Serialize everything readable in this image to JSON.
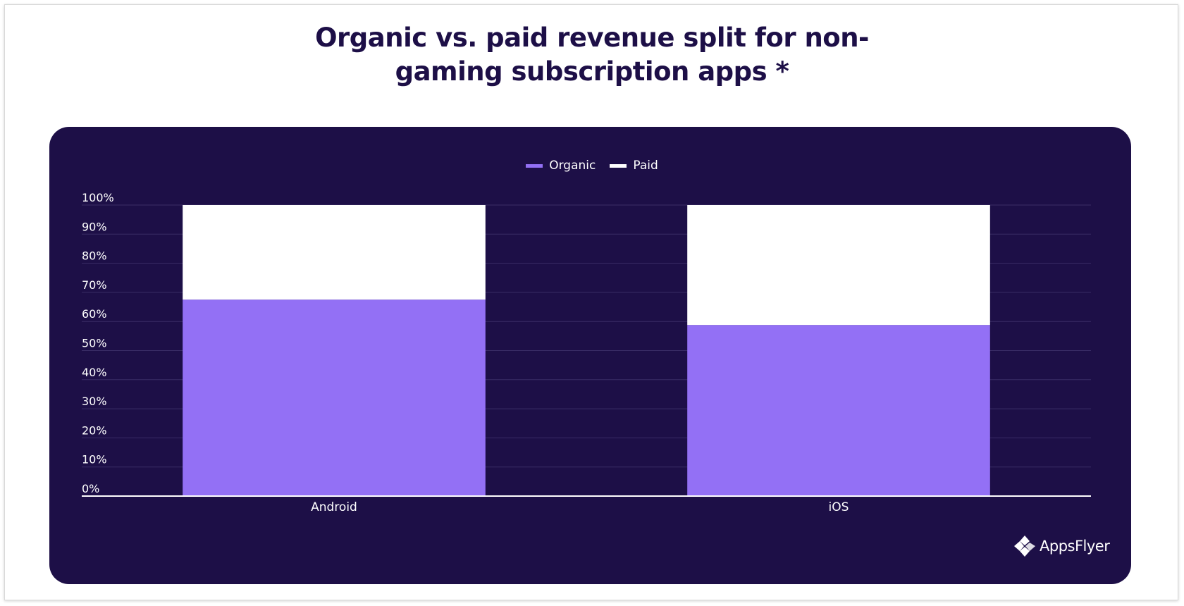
{
  "chart_data": {
    "type": "bar",
    "stacked": true,
    "title": "Organic vs. paid revenue split for non-gaming subscription apps *",
    "title_lines": [
      "Organic vs. paid revenue split for non-",
      "gaming subscription apps *"
    ],
    "categories": [
      "Android",
      "iOS"
    ],
    "series": [
      {
        "name": "Organic",
        "values": [
          67.5,
          58.8
        ],
        "color": "#9370f5"
      },
      {
        "name": "Paid",
        "values": [
          32.5,
          41.2
        ],
        "color": "#ffffff"
      }
    ],
    "yticks": [
      "0%",
      "10%",
      "20%",
      "30%",
      "40%",
      "50%",
      "60%",
      "70%",
      "80%",
      "90%",
      "100%"
    ],
    "ylim": [
      0,
      100
    ],
    "grid": true,
    "legend": "top-center",
    "background_color": "#1d0f47",
    "gridline_color": "#3a2d66"
  },
  "brand": {
    "logo_text": "AppsFlyer",
    "logo_icon": "appsflyer-logo-icon"
  }
}
